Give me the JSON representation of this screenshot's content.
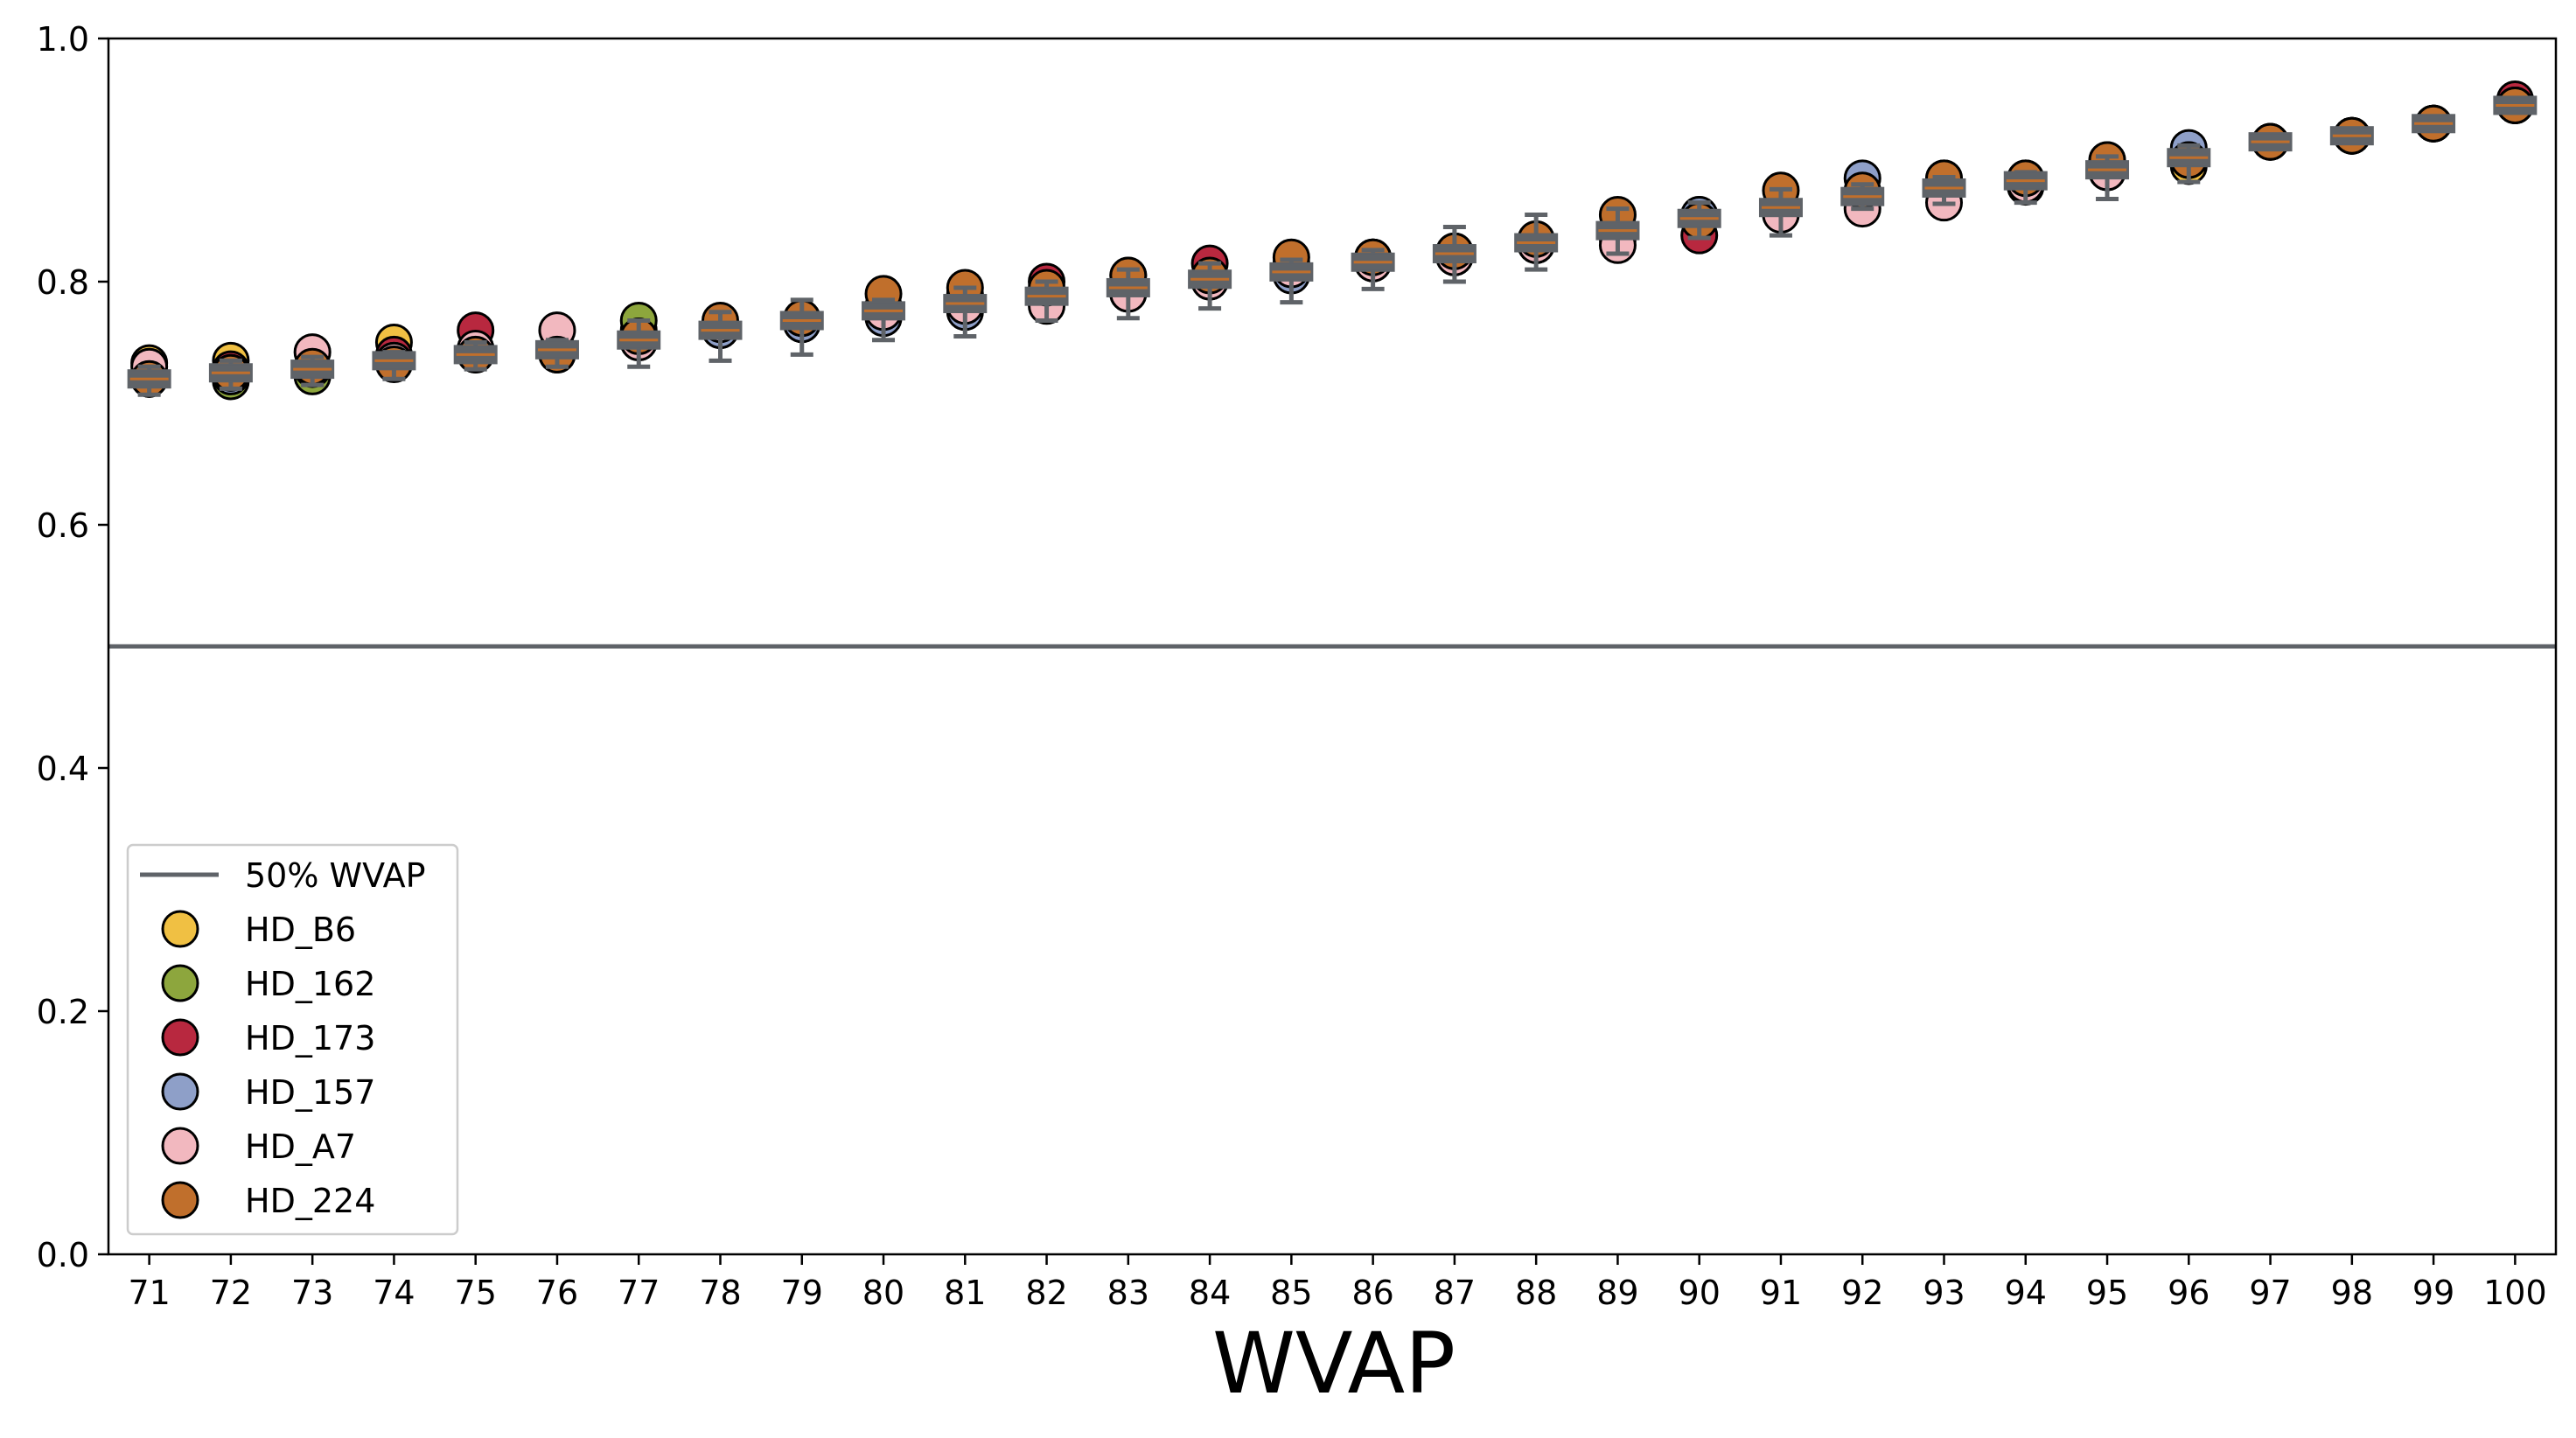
{
  "chart_data": {
    "type": "scatter",
    "title": "",
    "xlabel": "WVAP",
    "ylabel": "",
    "xlim": [
      70.5,
      100.5
    ],
    "ylim": [
      0.0,
      1.0
    ],
    "x_ticks": [
      "71",
      "72",
      "73",
      "74",
      "75",
      "76",
      "77",
      "78",
      "79",
      "80",
      "81",
      "82",
      "83",
      "84",
      "85",
      "86",
      "87",
      "88",
      "89",
      "90",
      "91",
      "92",
      "93",
      "94",
      "95",
      "96",
      "97",
      "98",
      "99",
      "100"
    ],
    "y_ticks": [
      "0.0",
      "0.2",
      "0.4",
      "0.6",
      "0.8",
      "1.0"
    ],
    "grid": false,
    "legend_position": "lower-left",
    "reference_line": {
      "name": "50% WVAP",
      "y": 0.5,
      "color": "#5f6368"
    },
    "x": [
      71,
      72,
      73,
      74,
      75,
      76,
      77,
      78,
      79,
      80,
      81,
      82,
      83,
      84,
      85,
      86,
      87,
      88,
      89,
      90,
      91,
      92,
      93,
      94,
      95,
      96,
      97,
      98,
      99,
      100
    ],
    "series": [
      {
        "name": "HD_B6",
        "color": "#f0c043",
        "values": [
          0.733,
          0.735,
          0.725,
          0.75,
          0.745,
          0.74,
          0.76,
          0.765,
          0.77,
          0.78,
          0.785,
          0.79,
          0.8,
          0.805,
          0.815,
          0.82,
          0.825,
          0.83,
          0.845,
          0.855,
          0.86,
          0.87,
          0.875,
          0.88,
          0.895,
          0.895,
          0.915,
          0.92,
          0.93,
          0.945
        ]
      },
      {
        "name": "HD_162",
        "color": "#8da63d",
        "values": [
          0.72,
          0.718,
          0.722,
          0.735,
          0.74,
          0.74,
          0.768,
          0.76,
          0.765,
          0.775,
          0.78,
          0.785,
          0.79,
          0.8,
          0.81,
          0.815,
          0.82,
          0.83,
          0.84,
          0.85,
          0.86,
          0.87,
          0.88,
          0.878,
          0.89,
          0.9,
          0.915,
          0.92,
          0.93,
          0.945
        ]
      },
      {
        "name": "HD_173",
        "color": "#b8283f",
        "values": [
          0.725,
          0.728,
          0.73,
          0.74,
          0.76,
          0.745,
          0.755,
          0.76,
          0.765,
          0.78,
          0.79,
          0.8,
          0.805,
          0.815,
          0.81,
          0.82,
          0.82,
          0.83,
          0.835,
          0.838,
          0.86,
          0.87,
          0.875,
          0.88,
          0.89,
          0.9,
          0.915,
          0.92,
          0.93,
          0.95
        ]
      },
      {
        "name": "HD_157",
        "color": "#8e9fc8",
        "values": [
          0.72,
          0.722,
          0.728,
          0.735,
          0.74,
          0.74,
          0.75,
          0.76,
          0.765,
          0.77,
          0.775,
          0.785,
          0.795,
          0.8,
          0.805,
          0.815,
          0.82,
          0.83,
          0.84,
          0.855,
          0.86,
          0.885,
          0.885,
          0.885,
          0.9,
          0.91,
          0.915,
          0.92,
          0.93,
          0.945
        ]
      },
      {
        "name": "HD_A7",
        "color": "#f2b8bf",
        "values": [
          0.73,
          0.725,
          0.742,
          0.735,
          0.745,
          0.76,
          0.75,
          0.765,
          0.77,
          0.775,
          0.78,
          0.78,
          0.79,
          0.8,
          0.81,
          0.815,
          0.82,
          0.83,
          0.83,
          0.85,
          0.855,
          0.86,
          0.865,
          0.88,
          0.89,
          0.9,
          0.915,
          0.92,
          0.93,
          0.945
        ]
      },
      {
        "name": "HD_224",
        "color": "#c06f2c",
        "values": [
          0.72,
          0.725,
          0.73,
          0.732,
          0.74,
          0.74,
          0.755,
          0.768,
          0.77,
          0.79,
          0.795,
          0.795,
          0.805,
          0.805,
          0.82,
          0.82,
          0.825,
          0.835,
          0.855,
          0.85,
          0.875,
          0.875,
          0.885,
          0.885,
          0.9,
          0.9,
          0.915,
          0.92,
          0.93,
          0.945
        ]
      }
    ],
    "box_summary": {
      "color": "#5f6368",
      "median": [
        0.72,
        0.725,
        0.728,
        0.735,
        0.74,
        0.744,
        0.752,
        0.76,
        0.768,
        0.776,
        0.782,
        0.788,
        0.795,
        0.802,
        0.808,
        0.816,
        0.823,
        0.832,
        0.842,
        0.852,
        0.861,
        0.87,
        0.877,
        0.883,
        0.892,
        0.902,
        0.915,
        0.92,
        0.93,
        0.945
      ],
      "lower": [
        0.707,
        0.712,
        0.715,
        0.72,
        0.728,
        0.73,
        0.73,
        0.735,
        0.74,
        0.752,
        0.755,
        0.768,
        0.77,
        0.778,
        0.783,
        0.794,
        0.8,
        0.81,
        0.823,
        0.836,
        0.838,
        0.86,
        0.864,
        0.865,
        0.868,
        0.882,
        0.91,
        0.915,
        0.928,
        0.942
      ],
      "upper": [
        0.73,
        0.735,
        0.738,
        0.742,
        0.75,
        0.752,
        0.768,
        0.775,
        0.785,
        0.785,
        0.795,
        0.8,
        0.81,
        0.815,
        0.818,
        0.826,
        0.845,
        0.855,
        0.86,
        0.865,
        0.876,
        0.88,
        0.886,
        0.89,
        0.903,
        0.912,
        0.92,
        0.925,
        0.935,
        0.95
      ]
    }
  }
}
